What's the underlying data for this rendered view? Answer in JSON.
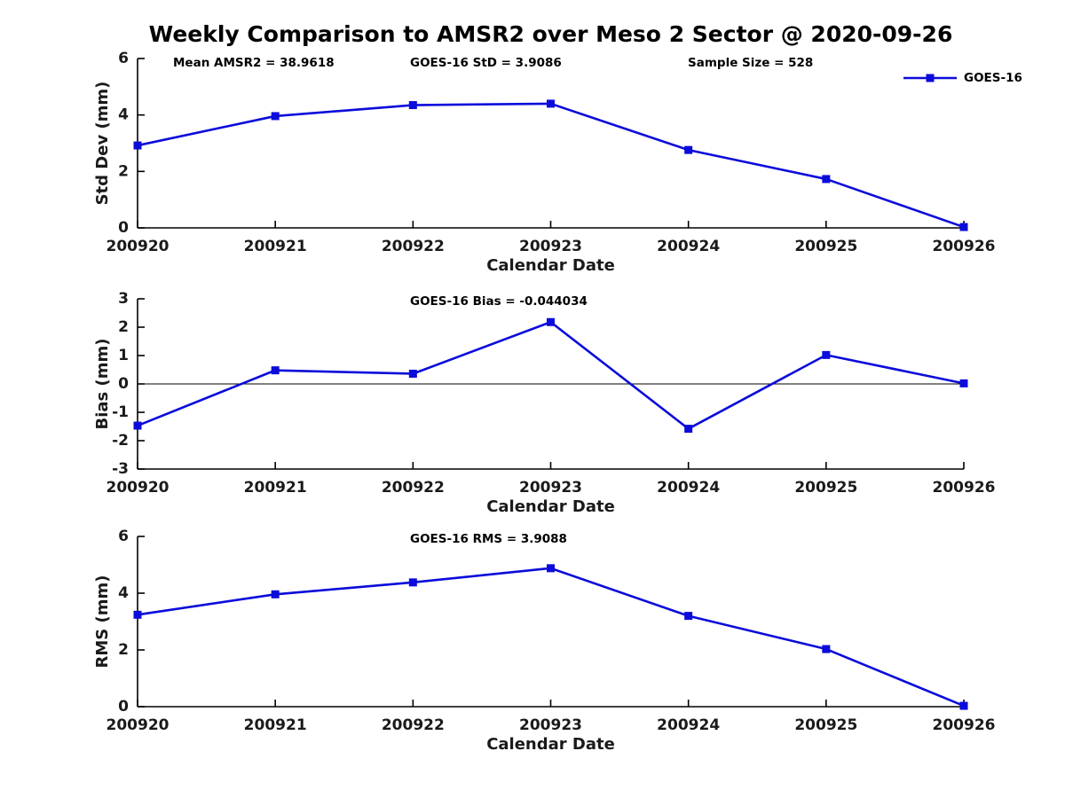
{
  "figure": {
    "title": "Weekly Comparison to AMSR2 over Meso 2 Sector @ 2020-09-26",
    "line_color": "#0b0bdb",
    "axis_color": "#000000",
    "text_color": "#1a1a1a"
  },
  "stats": {
    "mean_amsr2": 38.9618,
    "goes16_std": 3.9086,
    "sample_size": 528,
    "goes16_bias": -0.044034,
    "goes16_rms": 3.9088
  },
  "chart_data": [
    {
      "type": "line",
      "name": "std-dev",
      "title": "",
      "xlabel": "Calendar Date",
      "ylabel": "Std Dev (mm)",
      "categories": [
        "200920",
        "200921",
        "200922",
        "200923",
        "200924",
        "200925",
        "200926"
      ],
      "series": [
        {
          "name": "GOES-16",
          "values": [
            2.92,
            3.96,
            4.35,
            4.4,
            2.76,
            1.73,
            0.03
          ]
        }
      ],
      "ylim": [
        0,
        6
      ],
      "yticks": [
        0,
        2,
        4,
        6
      ],
      "grid": false,
      "zero_line": false,
      "annotations": [
        "Mean AMSR2 = 38.9618",
        "GOES-16 StD = 3.9086",
        "Sample Size = 528"
      ],
      "legend": {
        "label": "GOES-16",
        "position": "northeast"
      }
    },
    {
      "type": "line",
      "name": "bias",
      "title": "",
      "xlabel": "Calendar Date",
      "ylabel": "Bias (mm)",
      "categories": [
        "200920",
        "200921",
        "200922",
        "200923",
        "200924",
        "200925",
        "200926"
      ],
      "series": [
        {
          "name": "GOES-16",
          "values": [
            -1.47,
            0.48,
            0.36,
            2.18,
            -1.58,
            1.02,
            0.02
          ]
        }
      ],
      "ylim": [
        -3,
        3
      ],
      "yticks": [
        -3,
        -2,
        -1,
        0,
        1,
        2,
        3
      ],
      "grid": false,
      "zero_line": true,
      "annotations": [
        "GOES-16 Bias  = -0.044034"
      ],
      "legend": null
    },
    {
      "type": "line",
      "name": "rms",
      "title": "",
      "xlabel": "Calendar Date",
      "ylabel": "RMS (mm)",
      "categories": [
        "200920",
        "200921",
        "200922",
        "200923",
        "200924",
        "200925",
        "200926"
      ],
      "series": [
        {
          "name": "GOES-16",
          "values": [
            3.24,
            3.96,
            4.38,
            4.88,
            3.2,
            2.03,
            0.03
          ]
        }
      ],
      "ylim": [
        0,
        6
      ],
      "yticks": [
        0,
        2,
        4,
        6
      ],
      "grid": false,
      "zero_line": false,
      "annotations": [
        "GOES-16 RMS = 3.9088"
      ],
      "legend": null
    }
  ]
}
